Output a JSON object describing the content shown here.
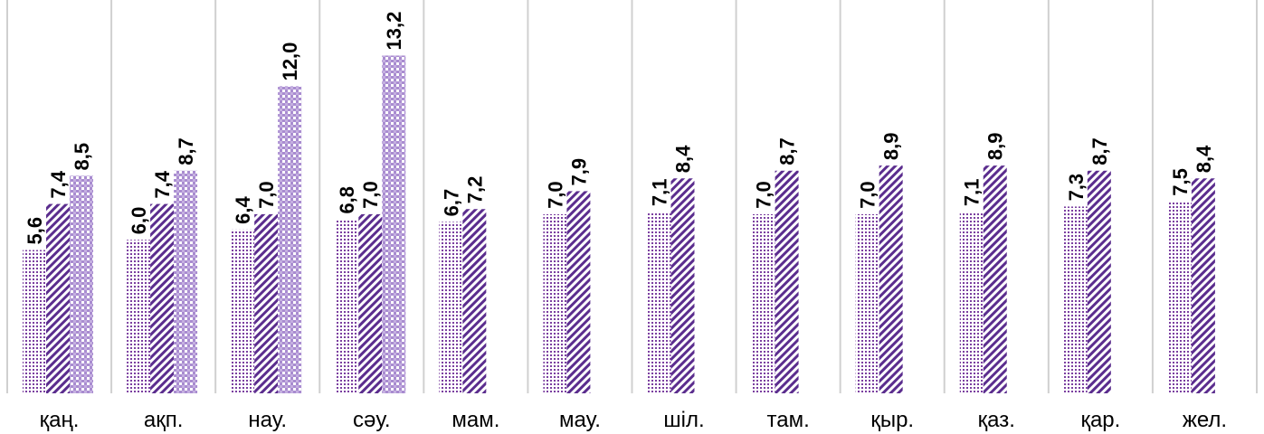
{
  "chart_data": {
    "type": "bar",
    "title": "",
    "xlabel": "",
    "ylabel": "",
    "categories": [
      "қаң.",
      "ақп.",
      "нау.",
      "сәу.",
      "мам.",
      "мау.",
      "шіл.",
      "там.",
      "қыр.",
      "қаз.",
      "қар.",
      "жел."
    ],
    "series": [
      {
        "values": [
          5.6,
          6.0,
          6.4,
          6.8,
          6.7,
          7.0,
          7.1,
          7.0,
          7.0,
          7.1,
          7.3,
          7.5
        ],
        "labels": [
          "5,6",
          "6,0",
          "6,4",
          "6,8",
          "6,7",
          "7,0",
          "7,1",
          "7,0",
          "7,0",
          "7,1",
          "7,3",
          "7,5"
        ],
        "pattern": "dots",
        "color": "#7b3fa0"
      },
      {
        "values": [
          7.4,
          7.4,
          7.0,
          7.0,
          7.2,
          7.9,
          8.4,
          8.7,
          8.9,
          8.9,
          8.7,
          8.4
        ],
        "labels": [
          "7,4",
          "7,4",
          "7,0",
          "7,0",
          "7,2",
          "7,9",
          "8,4",
          "8,7",
          "8,9",
          "8,9",
          "8,7",
          "8,4"
        ],
        "pattern": "diagonal-stripes",
        "color": "#5b2d8e"
      },
      {
        "values": [
          8.5,
          8.7,
          12.0,
          13.2,
          null,
          null,
          null,
          null,
          null,
          null,
          null,
          null
        ],
        "labels": [
          "8,5",
          "8,7",
          "12,0",
          "13,2",
          null,
          null,
          null,
          null,
          null,
          null,
          null,
          null
        ],
        "pattern": "checker",
        "color": "#a98cd0"
      }
    ],
    "ylim": [
      0,
      14
    ],
    "grid": "vertical-category-dividers",
    "legend": "none"
  }
}
